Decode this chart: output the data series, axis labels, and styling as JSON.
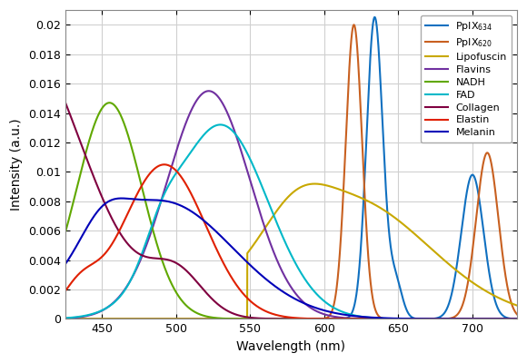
{
  "title": "",
  "xlabel": "Wavelength (nm)",
  "ylabel": "Intensity (a.u.)",
  "xlim": [
    425,
    730
  ],
  "ylim": [
    0,
    0.021
  ],
  "yticks": [
    0,
    0.002,
    0.004,
    0.006,
    0.008,
    0.01,
    0.012,
    0.014,
    0.016,
    0.018,
    0.02
  ],
  "xticks": [
    450,
    500,
    550,
    600,
    650,
    700
  ],
  "legend_labels": [
    "PpIX$_{634}$",
    "PpIX$_{620}$",
    "Lipofuscin",
    "Flavins",
    "NADH",
    "FAD",
    "Collagen",
    "Elastin",
    "Melanin"
  ],
  "colors": {
    "PpIX634": "#1070c0",
    "PpIX620": "#c86020",
    "Lipofuscin": "#c8a800",
    "Flavins": "#7030a0",
    "NADH": "#60a800",
    "FAD": "#00b8c8",
    "Collagen": "#800040",
    "Elastin": "#e02000",
    "Melanin": "#0000b8"
  },
  "background_color": "#ffffff",
  "grid_color": "#d0d0d0"
}
